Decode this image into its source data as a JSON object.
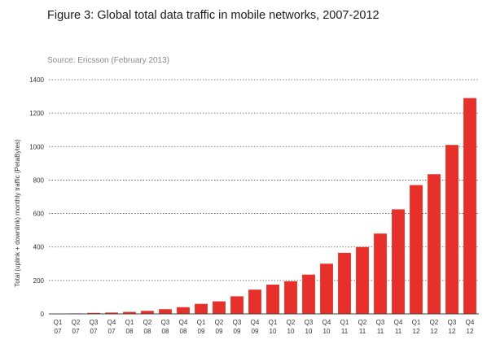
{
  "title": "Figure 3: Global total data traffic in mobile networks, 2007-2012",
  "source": "Source: Ericsson (February 2013)",
  "chart_data": {
    "type": "bar",
    "ylabel": "Total (uplink + downlink) monthly traffic (PetaBytes)",
    "xlabel": "",
    "ylim": [
      0,
      1400
    ],
    "yticks": [
      0,
      200,
      400,
      600,
      800,
      1000,
      1200,
      1400
    ],
    "grid": true,
    "bar_color": "#e8302a",
    "categories": [
      [
        "Q1",
        "07"
      ],
      [
        "Q2",
        "07"
      ],
      [
        "Q3",
        "07"
      ],
      [
        "Q4",
        "07"
      ],
      [
        "Q1",
        "08"
      ],
      [
        "Q2",
        "08"
      ],
      [
        "Q3",
        "08"
      ],
      [
        "Q4",
        "08"
      ],
      [
        "Q1",
        "09"
      ],
      [
        "Q2",
        "09"
      ],
      [
        "Q3",
        "09"
      ],
      [
        "Q4",
        "09"
      ],
      [
        "Q1",
        "10"
      ],
      [
        "Q2",
        "10"
      ],
      [
        "Q3",
        "10"
      ],
      [
        "Q4",
        "10"
      ],
      [
        "Q1",
        "11"
      ],
      [
        "Q2",
        "11"
      ],
      [
        "Q3",
        "11"
      ],
      [
        "Q4",
        "11"
      ],
      [
        "Q1",
        "12"
      ],
      [
        "Q2",
        "12"
      ],
      [
        "Q3",
        "12"
      ],
      [
        "Q4",
        "12"
      ]
    ],
    "values": [
      2,
      3,
      6,
      8,
      12,
      18,
      28,
      40,
      60,
      75,
      105,
      145,
      175,
      195,
      235,
      300,
      365,
      400,
      480,
      625,
      770,
      835,
      1010,
      1290
    ]
  }
}
